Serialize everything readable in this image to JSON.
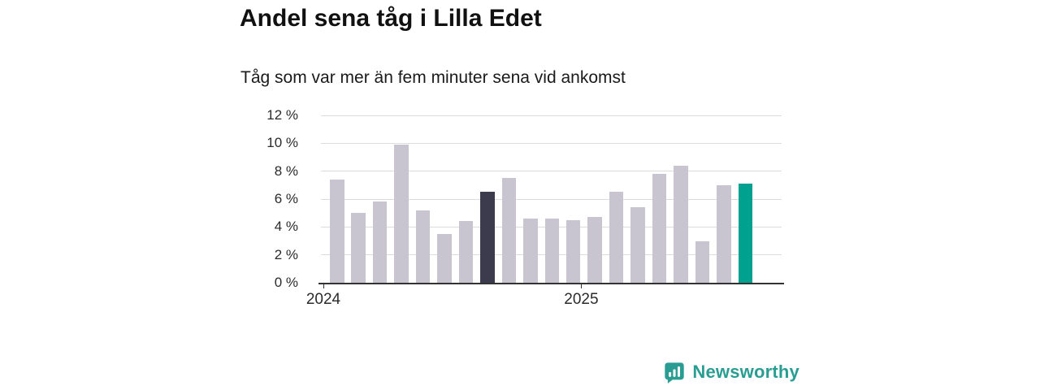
{
  "header": {
    "title": "Andel sena tåg i Lilla Edet",
    "subtitle": "Tåg som var mer än fem minuter sena vid ankomst"
  },
  "chart_data": {
    "type": "bar",
    "title": "Andel sena tåg i Lilla Edet",
    "subtitle": "Tåg som var mer än fem minuter sena vid ankomst",
    "unit": "%",
    "values": [
      7.4,
      5.0,
      5.8,
      9.9,
      5.2,
      3.5,
      4.4,
      6.5,
      7.5,
      4.6,
      4.6,
      4.5,
      4.7,
      6.5,
      5.4,
      7.8,
      8.4,
      3.0,
      7.0,
      7.1
    ],
    "ylim": [
      0,
      12
    ],
    "y_ticks": [
      0,
      2,
      4,
      6,
      8,
      10,
      12
    ],
    "y_tick_labels": [
      "0 %",
      "2 %",
      "4 %",
      "6 %",
      "8 %",
      "10 %",
      "12 %"
    ],
    "x_ticks": [
      {
        "label": "2024",
        "index": 0
      },
      {
        "label": "2025",
        "index": 12
      }
    ],
    "highlight": {
      "dark_index": 7,
      "teal_index": 19
    },
    "colors": {
      "bar_default": "#c8c5d0",
      "bar_dark": "#3b3b4d",
      "bar_teal": "#00a18f"
    },
    "grid": "horizontal",
    "legend": "none"
  },
  "footer": {
    "brand": "Newsworthy",
    "brand_color": "#2a9d93"
  }
}
